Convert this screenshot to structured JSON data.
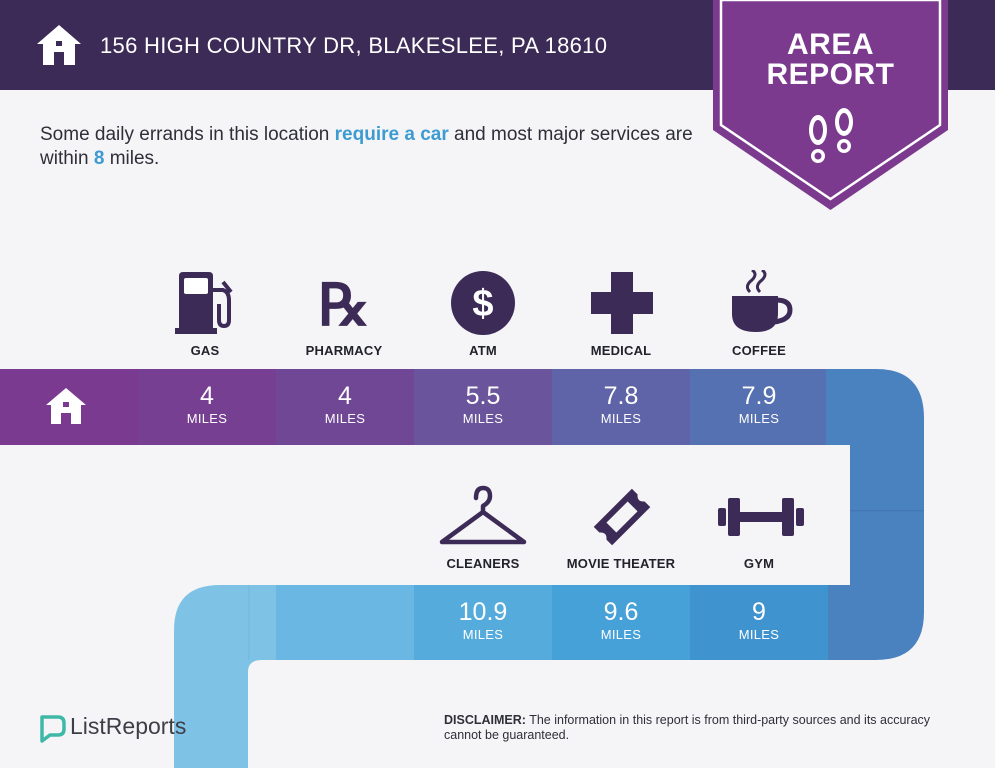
{
  "header": {
    "address": "156 HIGH COUNTRY DR, BLAKESLEE, PA 18610",
    "home_icon": "house-icon"
  },
  "badge": {
    "line1": "AREA",
    "line2": "REPORT",
    "icon": "footprints-icon"
  },
  "summary": {
    "part1": "Some daily errands in this location ",
    "highlight1": "require a car",
    "part2": " and most major services are within ",
    "highlight2": "8",
    "part3": " miles."
  },
  "services_top": [
    {
      "label": "GAS",
      "distance": "4",
      "unit": "MILES",
      "icon": "gas-pump-icon"
    },
    {
      "label": "PHARMACY",
      "distance": "4",
      "unit": "MILES",
      "icon": "rx-icon"
    },
    {
      "label": "ATM",
      "distance": "5.5",
      "unit": "MILES",
      "icon": "dollar-coin-icon"
    },
    {
      "label": "MEDICAL",
      "distance": "7.8",
      "unit": "MILES",
      "icon": "medical-cross-icon"
    },
    {
      "label": "COFFEE",
      "distance": "7.9",
      "unit": "MILES",
      "icon": "coffee-cup-icon"
    }
  ],
  "services_bottom": [
    {
      "label": "CLEANERS",
      "distance": "10.9",
      "unit": "MILES",
      "icon": "hanger-icon"
    },
    {
      "label": "MOVIE THEATER",
      "distance": "9.6",
      "unit": "MILES",
      "icon": "ticket-icon"
    },
    {
      "label": "GYM",
      "distance": "9",
      "unit": "MILES",
      "icon": "dumbbell-icon"
    }
  ],
  "colors": {
    "header_bg": "#3d2b57",
    "badge_purple": "#7b3a8e",
    "highlight_blue": "#3d9bd1",
    "track_start": "#7a3a8f",
    "track_end": "#7ec3e6"
  },
  "footer": {
    "logo_text": "ListReports",
    "logo_icon": "listreports-logo-icon",
    "disclaimer_label": "DISCLAIMER:",
    "disclaimer_text": " The information in this report is from third-party sources and its accuracy cannot be guaranteed."
  }
}
